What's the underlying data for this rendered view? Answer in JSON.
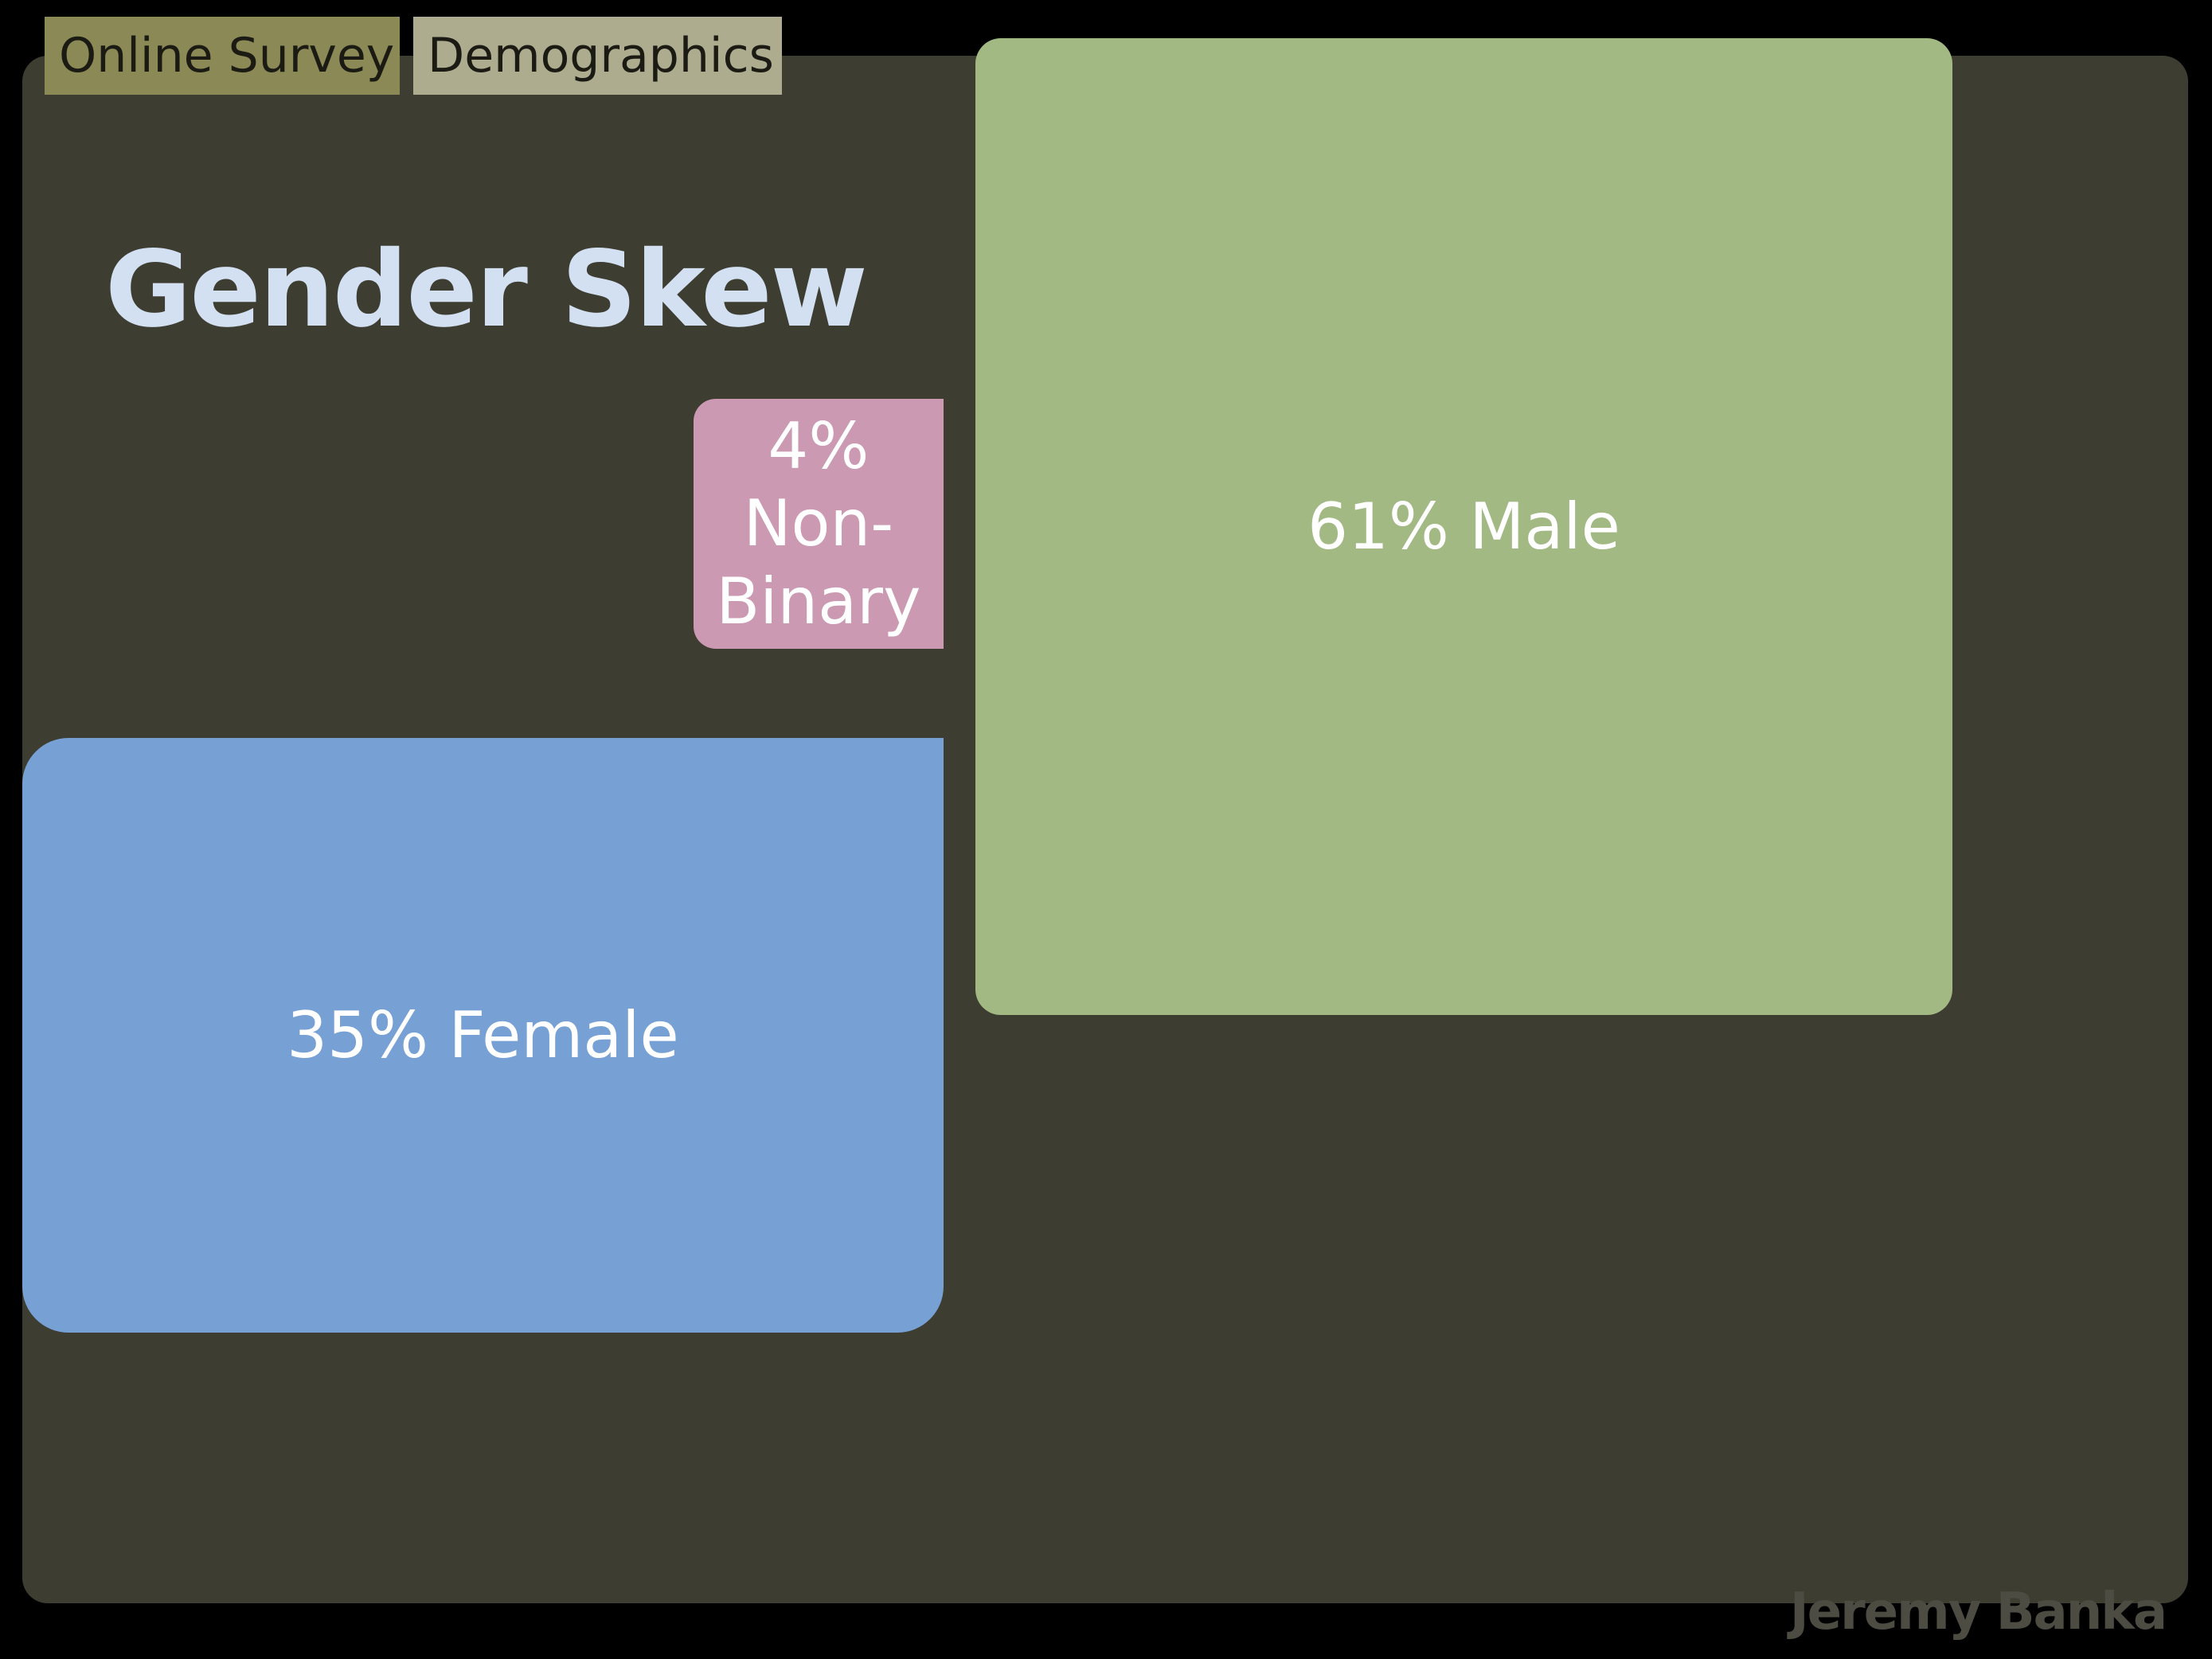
{
  "tags": {
    "survey": "Online Survey",
    "demographics": "Demographics"
  },
  "title": "Gender Skew",
  "credit": "Jeremy Banka",
  "colors": {
    "background": "#000000",
    "frame": "#3e3d31",
    "title": "#d2e0f2",
    "male": "#a2b983",
    "female": "#77a1d5",
    "non_binary": "#cb9ab2"
  },
  "chart_data": {
    "type": "treemap",
    "title": "Gender Skew",
    "unit": "%",
    "segments": [
      {
        "category": "Male",
        "value": 61,
        "label": "61% Male",
        "color": "#a2b983"
      },
      {
        "category": "Female",
        "value": 35,
        "label": "35% Female",
        "color": "#77a1d5"
      },
      {
        "category": "Non-Binary",
        "value": 4,
        "label": "4%\nNon-\nBinary",
        "color": "#cb9ab2"
      }
    ]
  }
}
